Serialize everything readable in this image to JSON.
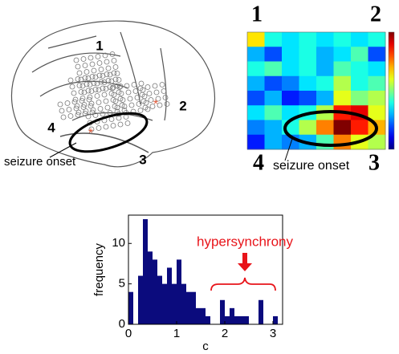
{
  "brain": {
    "labels": [
      "1",
      "2",
      "3",
      "4"
    ],
    "annotation": "seizure onset"
  },
  "matrix": {
    "corner_labels": [
      "1",
      "2",
      "4",
      "3"
    ],
    "annotation": "seizure onset"
  },
  "chart_data": [
    {
      "type": "heatmap",
      "colormap": "jet",
      "range": [
        0,
        1
      ],
      "values": [
        [
          0.65,
          0.4,
          0.35,
          0.4,
          0.35,
          0.4,
          0.35,
          0.4
        ],
        [
          0.3,
          0.2,
          0.35,
          0.4,
          0.3,
          0.35,
          0.45,
          0.2
        ],
        [
          0.4,
          0.45,
          0.35,
          0.4,
          0.3,
          0.45,
          0.4,
          0.35
        ],
        [
          0.3,
          0.2,
          0.25,
          0.35,
          0.4,
          0.55,
          0.4,
          0.45
        ],
        [
          0.2,
          0.3,
          0.15,
          0.2,
          0.3,
          0.6,
          0.5,
          0.55
        ],
        [
          0.35,
          0.45,
          0.35,
          0.4,
          0.55,
          0.85,
          0.9,
          0.6
        ],
        [
          0.25,
          0.3,
          0.4,
          0.55,
          0.75,
          1.0,
          0.85,
          0.7
        ],
        [
          0.15,
          0.3,
          0.25,
          0.3,
          0.45,
          0.75,
          0.6,
          0.55
        ]
      ]
    },
    {
      "type": "histogram",
      "color": "#0b0b7d",
      "xlabel": "c",
      "ylabel": "frequency",
      "annotation": "hypersynchrony",
      "bins": [
        0,
        0.1,
        0.2,
        0.3,
        0.4,
        0.5,
        0.6,
        0.7,
        0.8,
        0.9,
        1.0,
        1.1,
        1.2,
        1.3,
        1.4,
        1.5,
        1.6,
        1.7,
        1.8,
        1.9,
        2.0,
        2.1,
        2.2,
        2.3,
        2.4,
        2.5,
        2.6,
        2.7,
        2.8,
        2.9,
        3.0,
        3.1
      ],
      "values": [
        4,
        0,
        6,
        13,
        9,
        8,
        6,
        5,
        7,
        5,
        8,
        5,
        4,
        4,
        2,
        2,
        1,
        0,
        0,
        3,
        1,
        2,
        1,
        1,
        1,
        0,
        0,
        3,
        0,
        0,
        1
      ],
      "xlim": [
        0,
        3.2
      ],
      "ylim": [
        0,
        13.5
      ],
      "xticks": [
        0,
        1,
        2,
        3
      ],
      "yticks": [
        0,
        5,
        10
      ]
    }
  ]
}
